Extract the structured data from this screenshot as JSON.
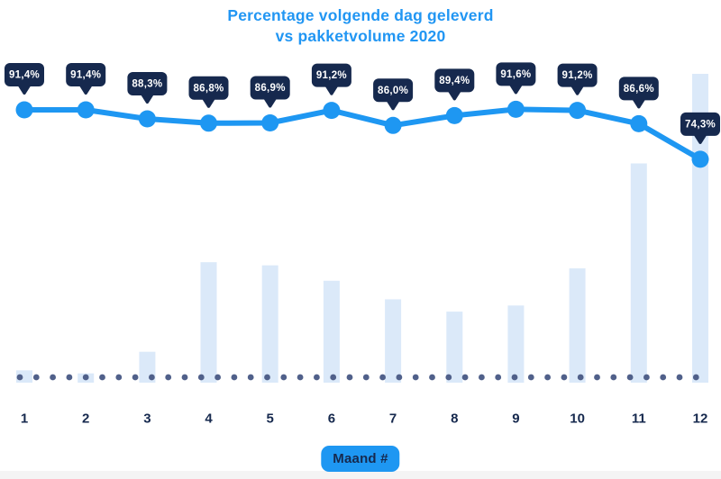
{
  "header": {
    "title_line1": "Percentage volgende dag geleverd",
    "title_line2": "vs pakketvolume 2020"
  },
  "colors": {
    "accent_blue": "#1e97f2",
    "title_blue": "#2196f3",
    "tooltip_navy": "#16294e",
    "tooltip_text": "#ffffff",
    "bar_fill": "#dbe9f9",
    "baseline_dot": "#50608a",
    "axis_label_navy": "#16294e",
    "badge_bg": "#1e97f2",
    "background": "#ffffff",
    "footer_strip": "#f4f4f4"
  },
  "chart_data": {
    "type": "combo",
    "title": "Percentage volgende dag geleverd vs pakketvolume 2020",
    "xlabel": "Maand #",
    "categories": [
      "1",
      "2",
      "3",
      "4",
      "5",
      "6",
      "7",
      "8",
      "9",
      "10",
      "11",
      "12"
    ],
    "series": [
      {
        "name": "Percentage volgende dag geleverd",
        "type": "line",
        "unit": "%",
        "values": [
          91.4,
          91.4,
          88.3,
          86.8,
          86.9,
          91.2,
          86.0,
          89.4,
          91.6,
          91.2,
          86.6,
          74.3
        ],
        "labels": [
          "91,4%",
          "91,4%",
          "88,3%",
          "86,8%",
          "86,9%",
          "91,2%",
          "86,0%",
          "89,4%",
          "91,6%",
          "91,2%",
          "86,6%",
          "74,3%"
        ]
      },
      {
        "name": "Pakketvolume 2020",
        "type": "bar",
        "unit": "relative volume (estimated from bar heights, max month = 100)",
        "values": [
          4,
          3,
          10,
          39,
          38,
          33,
          27,
          23,
          25,
          37,
          71,
          100
        ]
      }
    ],
    "legend": "none",
    "grid": false,
    "y_axis": "hidden",
    "line_value_range_shown": [
      74.3,
      91.6
    ],
    "baseline": "dotted"
  }
}
